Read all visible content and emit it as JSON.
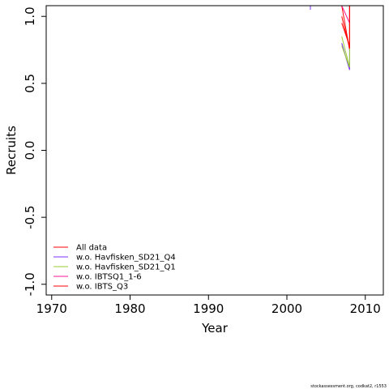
{
  "chart_data": {
    "type": "line",
    "title": "",
    "xlabel": "Year",
    "ylabel": "Recruits",
    "xlim": [
      1969.3,
      2012.3
    ],
    "ylim": [
      -1.08,
      1.08
    ],
    "x_ticks": [
      1970,
      1980,
      1990,
      2000,
      2010
    ],
    "x_tick_labels": [
      "1970",
      "1980",
      "1990",
      "2000",
      "2010"
    ],
    "y_ticks": [
      -1.0,
      -0.5,
      0.0,
      0.5,
      1.0
    ],
    "y_tick_labels": [
      "-1.0",
      "-0.5",
      "0.0",
      "0.5",
      "1.0"
    ],
    "legend_position": "bottom-left",
    "series": [
      {
        "name": "All data",
        "color": "#ff0000",
        "x": [
          2007,
          2008,
          2008
        ],
        "y": [
          1.08,
          0.75,
          1.08
        ]
      },
      {
        "name": "w.o. Havfisken_SD21_Q4",
        "color": "#7b2fff",
        "x": [
          2003,
          2003
        ],
        "y": [
          1.05,
          1.08
        ]
      },
      {
        "name": "w.o. Havfisken_SD21_Q1",
        "color": "#9acd32",
        "x": [
          2007,
          2008,
          2008
        ],
        "y": [
          0.85,
          0.62,
          1.08
        ]
      },
      {
        "name": "w.o. IBTSQ1_1-6",
        "color": "#ff1493",
        "x": [
          2007,
          2008,
          2008
        ],
        "y": [
          1.08,
          0.95,
          1.08
        ]
      },
      {
        "name": "w.o. IBTS_Q3",
        "color": "#ff0000",
        "x": [
          2007,
          2008,
          2008
        ],
        "y": [
          1.0,
          0.76,
          1.08
        ]
      }
    ],
    "extra_traces": [
      {
        "color": "#7b2fff",
        "x": [
          2007,
          2008,
          2008
        ],
        "y": [
          0.8,
          0.6,
          1.08
        ]
      },
      {
        "color": "#9acd32",
        "x": [
          2007,
          2008
        ],
        "y": [
          0.78,
          0.62
        ]
      },
      {
        "color": "#ff0000",
        "x": [
          2007,
          2008
        ],
        "y": [
          0.95,
          0.78
        ]
      }
    ]
  },
  "footnote": "stockassessment.org, codkat2, r1553"
}
